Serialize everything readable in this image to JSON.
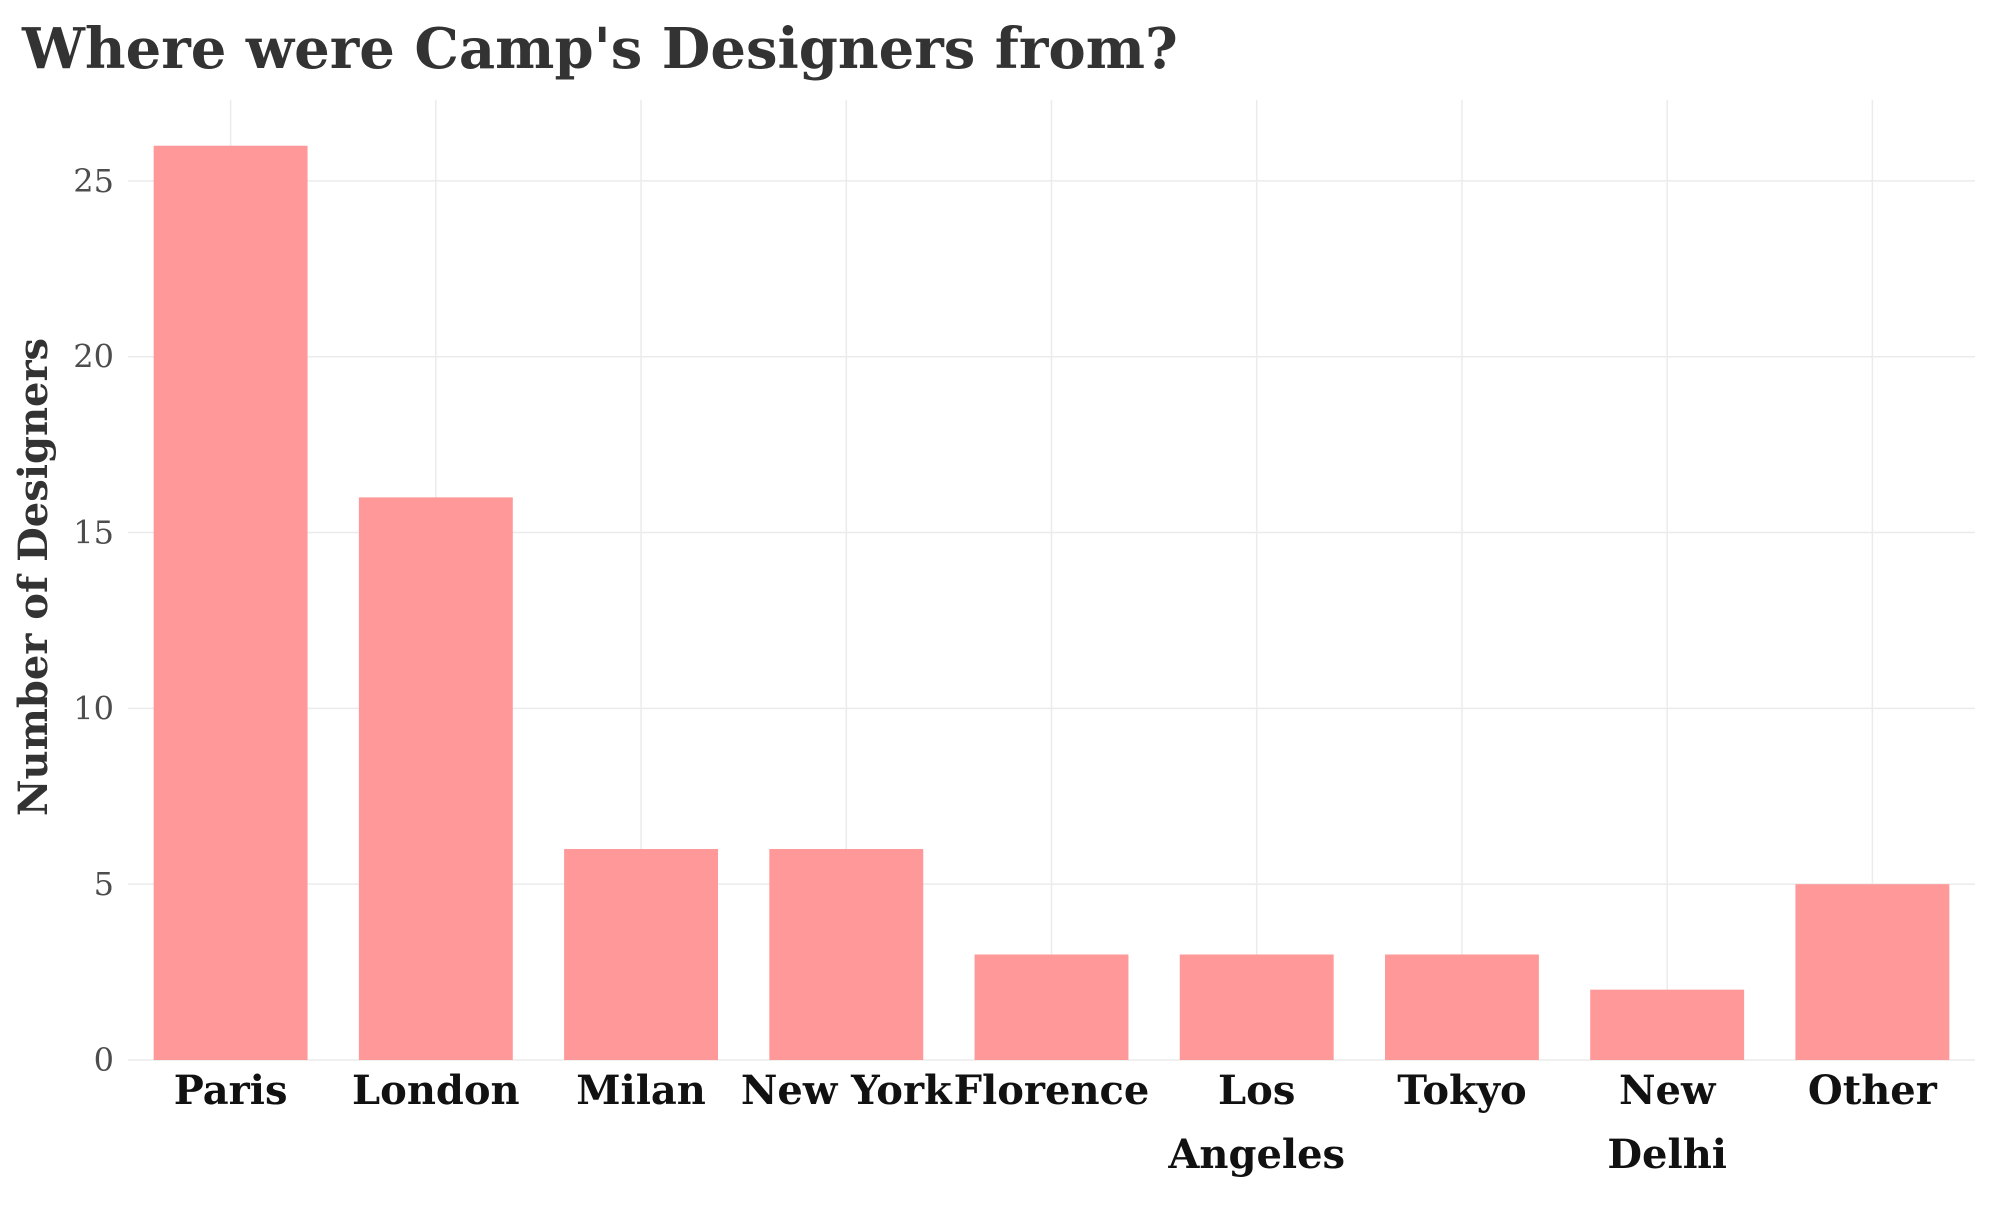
{
  "chart_data": {
    "type": "bar",
    "title": "Where were Camp's Designers from?",
    "xlabel": "",
    "ylabel": "Number of Designers",
    "categories": [
      "Paris",
      "London",
      "Milan",
      "New York",
      "Florence",
      "Los Angeles",
      "Tokyo",
      "New Delhi",
      "Other"
    ],
    "category_label_lines": [
      [
        "Paris"
      ],
      [
        "London"
      ],
      [
        "Milan"
      ],
      [
        "New York"
      ],
      [
        "Florence"
      ],
      [
        "Los",
        "Angeles"
      ],
      [
        "Tokyo"
      ],
      [
        "New",
        "Delhi"
      ],
      [
        "Other"
      ]
    ],
    "values": [
      26,
      16,
      6,
      6,
      3,
      3,
      3,
      2,
      5
    ],
    "ylim": [
      0,
      27.3
    ],
    "yticks": [
      0,
      5,
      10,
      15,
      20,
      25
    ],
    "bar_color": "#ff9999",
    "grid": true,
    "legend": "none"
  }
}
